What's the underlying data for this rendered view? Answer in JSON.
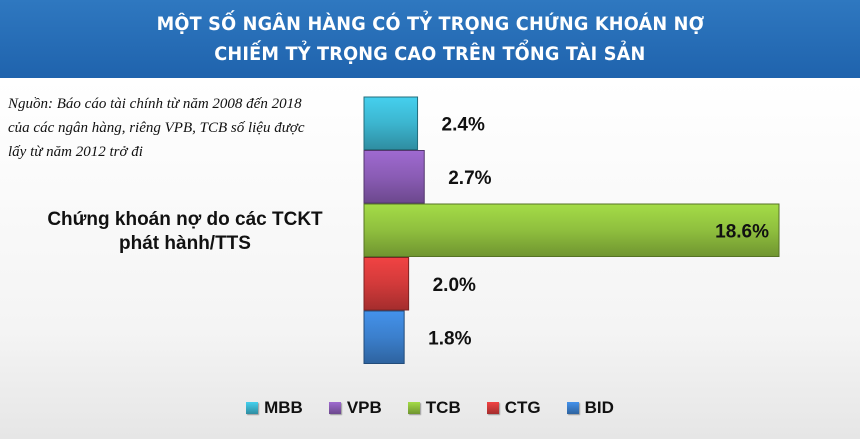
{
  "title_lines": [
    "MỘT SỐ NGÂN HÀNG CÓ TỶ TRỌNG CHỨNG KHOÁN NỢ",
    "CHIẾM TỶ TRỌNG CAO TRÊN TỔNG TÀI SẢN"
  ],
  "source_lines": [
    "Nguồn: Báo cáo tài chính từ năm 2008 đến 2018",
    "của các ngân hàng, riêng VPB, TCB số liệu được",
    "lấy từ năm 2012 trở đi"
  ],
  "chart_data": {
    "type": "bar",
    "orientation": "horizontal",
    "category_label_lines": [
      "Chứng khoán nợ do các TCKT",
      "phát hành/TTS"
    ],
    "series": [
      {
        "name": "MBB",
        "value": 2.4,
        "label": "2.4%",
        "color": "#3cb5cf"
      },
      {
        "name": "VPB",
        "value": 2.7,
        "label": "2.7%",
        "color": "#8a5cb5"
      },
      {
        "name": "TCB",
        "value": 18.6,
        "label": "18.6%",
        "color": "#8fbf3e"
      },
      {
        "name": "CTG",
        "value": 2.0,
        "label": "2.0%",
        "color": "#d23a3a"
      },
      {
        "name": "BID",
        "value": 1.8,
        "label": "1.8%",
        "color": "#3b7fcc"
      }
    ],
    "xlim": [
      0,
      18.6
    ],
    "legend_position": "bottom",
    "grid": false
  }
}
